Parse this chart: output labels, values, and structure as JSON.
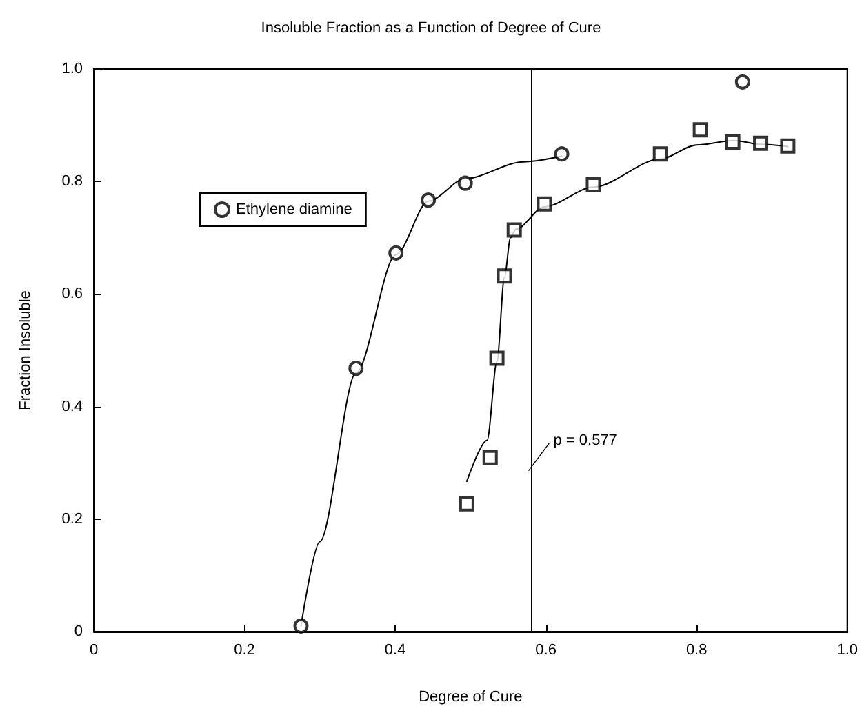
{
  "chart_data": {
    "type": "scatter",
    "title": "Insoluble Fraction as a Function of Degree of Cure",
    "xlabel": "Degree of Cure",
    "ylabel": "Fraction Insoluble",
    "xlim": [
      0,
      1
    ],
    "xticks": [
      0,
      0.2,
      0.4,
      0.6,
      0.8,
      {
        "value": 1,
        "label": "1.0"
      }
    ],
    "ylim": [
      0,
      1
    ],
    "yticks": [
      0,
      0.2,
      0.4,
      0.6,
      0.8,
      {
        "value": 1,
        "label": "1.0"
      }
    ],
    "grid": false,
    "legend": "top left",
    "ref_lines": [
      {
        "axis": "x",
        "value": 0.577,
        "label": "p = 0.577",
        "color": "#000000"
      }
    ],
    "series": [
      {
        "type": "scatter",
        "marker": "square",
        "color": "#000000",
        "x": [
          0.495,
          0.526,
          0.535,
          0.545,
          0.558,
          0.598,
          0.663,
          0.752,
          0.805,
          0.848,
          0.885,
          0.921
        ],
        "values": [
          0.227,
          0.309,
          0.486,
          0.632,
          0.714,
          0.76,
          0.794,
          0.849,
          0.892,
          0.87,
          0.868,
          0.863
        ]
      },
      {
        "type": "scatter",
        "name": "Ethylene diamine",
        "marker": "circle",
        "color": "#000000",
        "x": [
          0.275,
          0.348,
          0.401,
          0.444,
          0.493,
          0.621,
          0.861
        ],
        "values": [
          0.01,
          0.468,
          0.673,
          0.767,
          0.797,
          0.849,
          0.977
        ]
      },
      {
        "type": "line",
        "marker": "none",
        "line_style": "solid",
        "color": "#000000",
        "x": [
          0.495,
          0.522,
          0.535,
          0.545,
          0.553,
          0.56,
          0.598,
          0.663,
          0.752,
          0.8,
          0.85,
          0.885,
          0.921
        ],
        "values": [
          0.267,
          0.34,
          0.48,
          0.63,
          0.7,
          0.715,
          0.755,
          0.79,
          0.84,
          0.865,
          0.873,
          0.866,
          0.862
        ]
      },
      {
        "type": "line",
        "marker": "none",
        "line_style": "solid",
        "color": "#000000",
        "x": [
          0.275,
          0.3,
          0.348,
          0.401,
          0.444,
          0.493,
          0.57,
          0.621
        ],
        "values": [
          0.01,
          0.16,
          0.46,
          0.67,
          0.765,
          0.805,
          0.835,
          0.845
        ]
      }
    ]
  }
}
